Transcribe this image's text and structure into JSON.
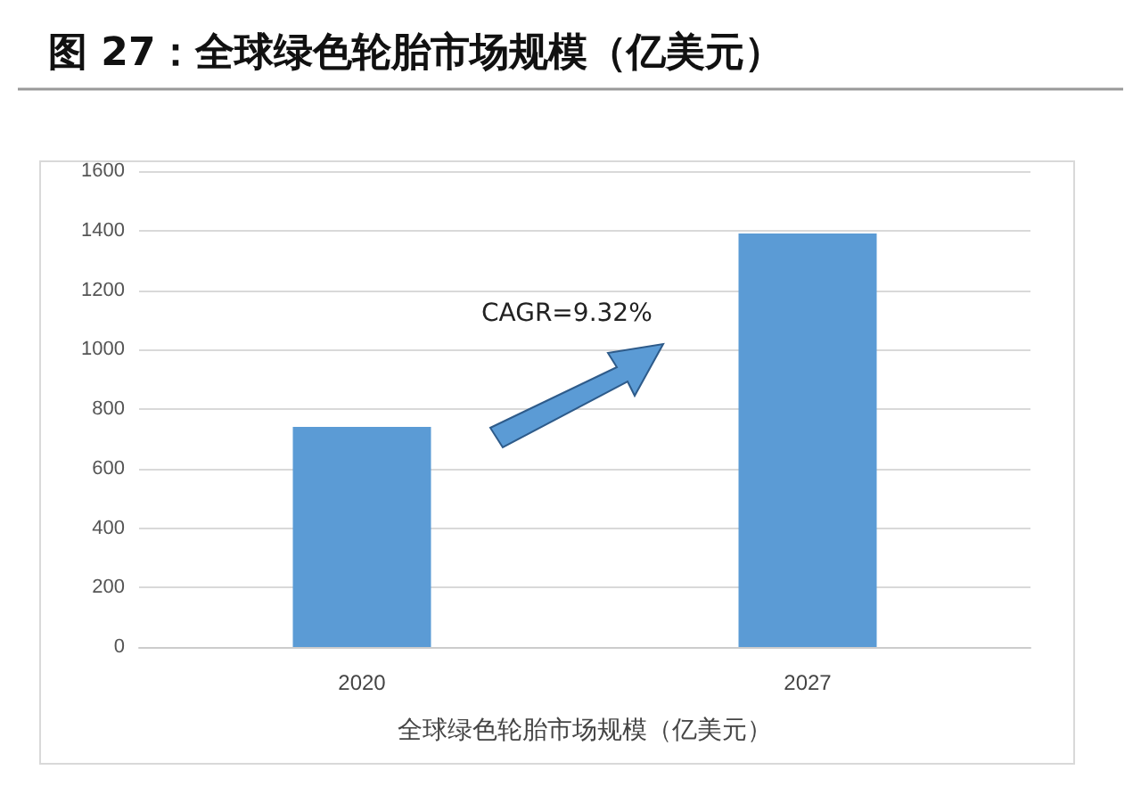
{
  "chart_data": {
    "type": "bar",
    "title": "图 27：全球绿色轮胎市场规模（亿美元）",
    "xlabel": "全球绿色轮胎市场规模（亿美元）",
    "categories": [
      "2020",
      "2027"
    ],
    "series": [
      {
        "color": "#5b9bd5",
        "values": [
          740,
          1390
        ]
      }
    ],
    "ylim": [
      0,
      1600
    ],
    "yticks": [
      0,
      200,
      400,
      600,
      800,
      1000,
      1200,
      1400,
      1600
    ],
    "grid": "y",
    "annotations": [
      "CAGR=9.32%"
    ]
  }
}
